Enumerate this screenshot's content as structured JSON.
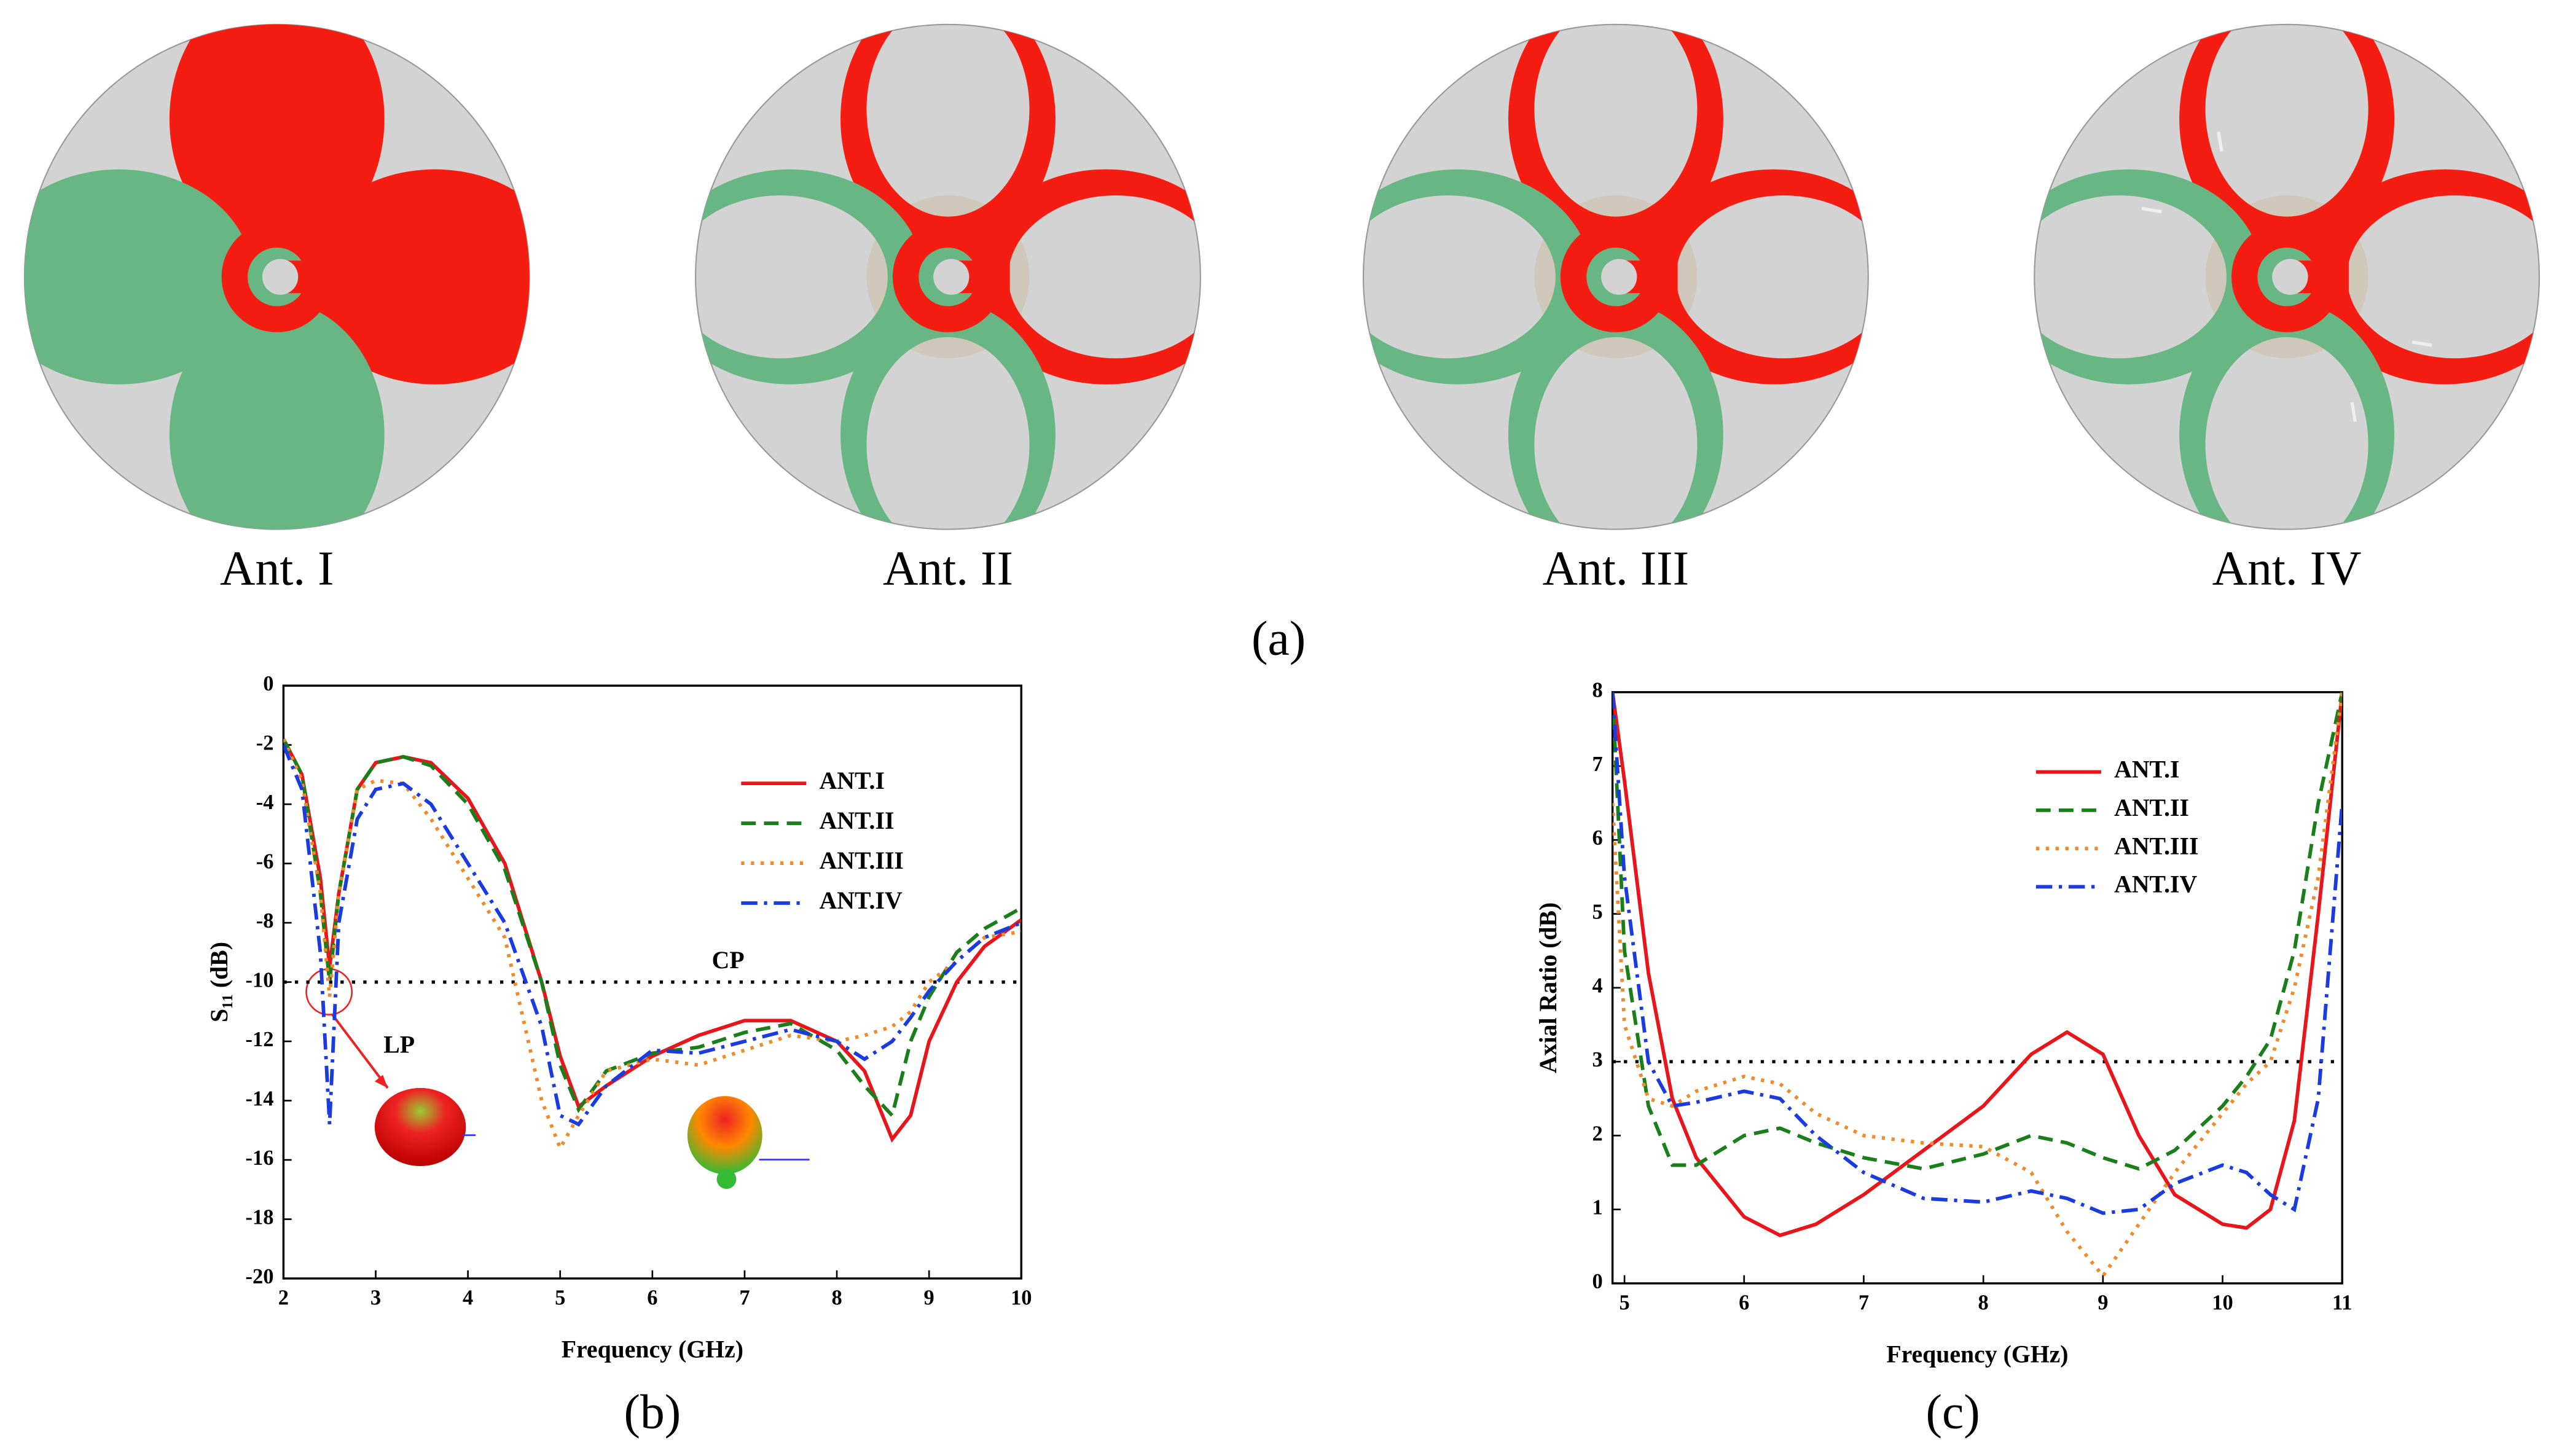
{
  "figure": {
    "antenna_labels": [
      "Ant. I",
      "Ant. II",
      "Ant. III",
      "Ant. IV"
    ],
    "caption": "(a)"
  },
  "chart_data": [
    {
      "type": "line",
      "caption": "(b)",
      "x_label": "Frequency (GHz)",
      "y_label": "S₁₁ (dB)",
      "x": [
        2,
        2.2,
        2.4,
        2.5,
        2.6,
        2.8,
        3,
        3.3,
        3.6,
        4,
        4.4,
        4.8,
        5,
        5.2,
        5.5,
        6,
        6.5,
        7,
        7.5,
        8,
        8.3,
        8.6,
        8.8,
        9,
        9.3,
        9.6,
        10
      ],
      "series": [
        {
          "name": "ANT.I",
          "color": "#e8161b",
          "style": "solid",
          "values": [
            -1.8,
            -3,
            -6.5,
            -9.5,
            -7,
            -3.5,
            -2.6,
            -2.4,
            -2.6,
            -3.8,
            -6,
            -10,
            -12.5,
            -14.2,
            -13.5,
            -12.5,
            -11.8,
            -11.3,
            -11.3,
            -12,
            -13,
            -15.3,
            -14.5,
            -12,
            -10,
            -8.8,
            -7.9
          ]
        },
        {
          "name": "ANT.II",
          "color": "#1a7f1a",
          "style": "dash",
          "values": [
            -1.8,
            -3,
            -7,
            -10,
            -7,
            -3.5,
            -2.6,
            -2.4,
            -2.7,
            -4,
            -6.2,
            -10,
            -12.8,
            -14.3,
            -13,
            -12.4,
            -12.2,
            -11.7,
            -11.4,
            -12.3,
            -13.5,
            -14.5,
            -12,
            -10.5,
            -9,
            -8.2,
            -7.5
          ]
        },
        {
          "name": "ANT.III",
          "color": "#f08a2b",
          "style": "dot",
          "values": [
            -1.8,
            -3.2,
            -7,
            -10.5,
            -7,
            -3.5,
            -3.2,
            -3.3,
            -4.5,
            -6.5,
            -8.5,
            -14,
            -15.6,
            -14.5,
            -13,
            -12.6,
            -12.8,
            -12.3,
            -11.8,
            -12,
            -11.8,
            -11.5,
            -11,
            -10,
            -9.3,
            -8.5,
            -8.3
          ]
        },
        {
          "name": "ANT.IV",
          "color": "#1a3be0",
          "style": "dashdot",
          "values": [
            -2,
            -3.5,
            -9,
            -14.8,
            -8,
            -4.5,
            -3.5,
            -3.3,
            -4,
            -6,
            -8,
            -11.5,
            -14.5,
            -14.8,
            -13.5,
            -12.3,
            -12.4,
            -12,
            -11.6,
            -12,
            -12.6,
            -12,
            -11.2,
            -10.3,
            -9.3,
            -8.5,
            -8
          ]
        }
      ],
      "xlim": [
        2,
        10
      ],
      "xticks": [
        2,
        3,
        4,
        5,
        6,
        7,
        8,
        9,
        10
      ],
      "ylim": [
        -20,
        0
      ],
      "yticks": [
        -20,
        -18,
        -16,
        -14,
        -12,
        -10,
        -8,
        -6,
        -4,
        -2,
        0
      ],
      "hline": -10,
      "annotations": [
        "CP",
        "LP"
      ]
    },
    {
      "type": "line",
      "caption": "(c)",
      "x_label": "Frequency (GHz)",
      "y_label": "Axial Ratio (dB)",
      "x": [
        4.9,
        5,
        5.2,
        5.4,
        5.6,
        6,
        6.3,
        6.6,
        7,
        7.5,
        8,
        8.4,
        8.7,
        9,
        9.3,
        9.6,
        10,
        10.2,
        10.4,
        10.6,
        10.8,
        11
      ],
      "series": [
        {
          "name": "ANT.I",
          "color": "#e8161b",
          "style": "solid",
          "values": [
            8,
            6.8,
            4.2,
            2.5,
            1.7,
            0.9,
            0.65,
            0.8,
            1.2,
            1.8,
            2.4,
            3.1,
            3.4,
            3.1,
            2.0,
            1.2,
            0.8,
            0.75,
            1.0,
            2.2,
            5.0,
            8
          ]
        },
        {
          "name": "ANT.II",
          "color": "#1a7f1a",
          "style": "dash",
          "values": [
            8,
            4.5,
            2.4,
            1.6,
            1.6,
            2.0,
            2.1,
            1.9,
            1.7,
            1.55,
            1.75,
            2.0,
            1.9,
            1.7,
            1.55,
            1.8,
            2.4,
            2.8,
            3.3,
            4.5,
            6.5,
            8
          ]
        },
        {
          "name": "ANT.III",
          "color": "#f08a2b",
          "style": "dot",
          "values": [
            6.5,
            3.5,
            2.5,
            2.4,
            2.6,
            2.8,
            2.7,
            2.3,
            2.0,
            1.9,
            1.85,
            1.5,
            0.7,
            0.1,
            0.8,
            1.5,
            2.3,
            2.7,
            3.0,
            4.0,
            5.5,
            8
          ]
        },
        {
          "name": "ANT.IV",
          "color": "#1a3be0",
          "style": "dashdot",
          "values": [
            8,
            5.5,
            3,
            2.4,
            2.45,
            2.6,
            2.5,
            2.0,
            1.5,
            1.15,
            1.1,
            1.25,
            1.15,
            0.95,
            1.0,
            1.35,
            1.6,
            1.5,
            1.2,
            1.0,
            2.5,
            6.5
          ]
        }
      ],
      "xlim": [
        4.9,
        11
      ],
      "xticks": [
        5,
        6,
        7,
        8,
        9,
        10,
        11
      ],
      "ylim": [
        0,
        8
      ],
      "yticks": [
        0,
        1,
        2,
        3,
        4,
        5,
        6,
        7,
        8
      ],
      "hline": 3
    }
  ]
}
